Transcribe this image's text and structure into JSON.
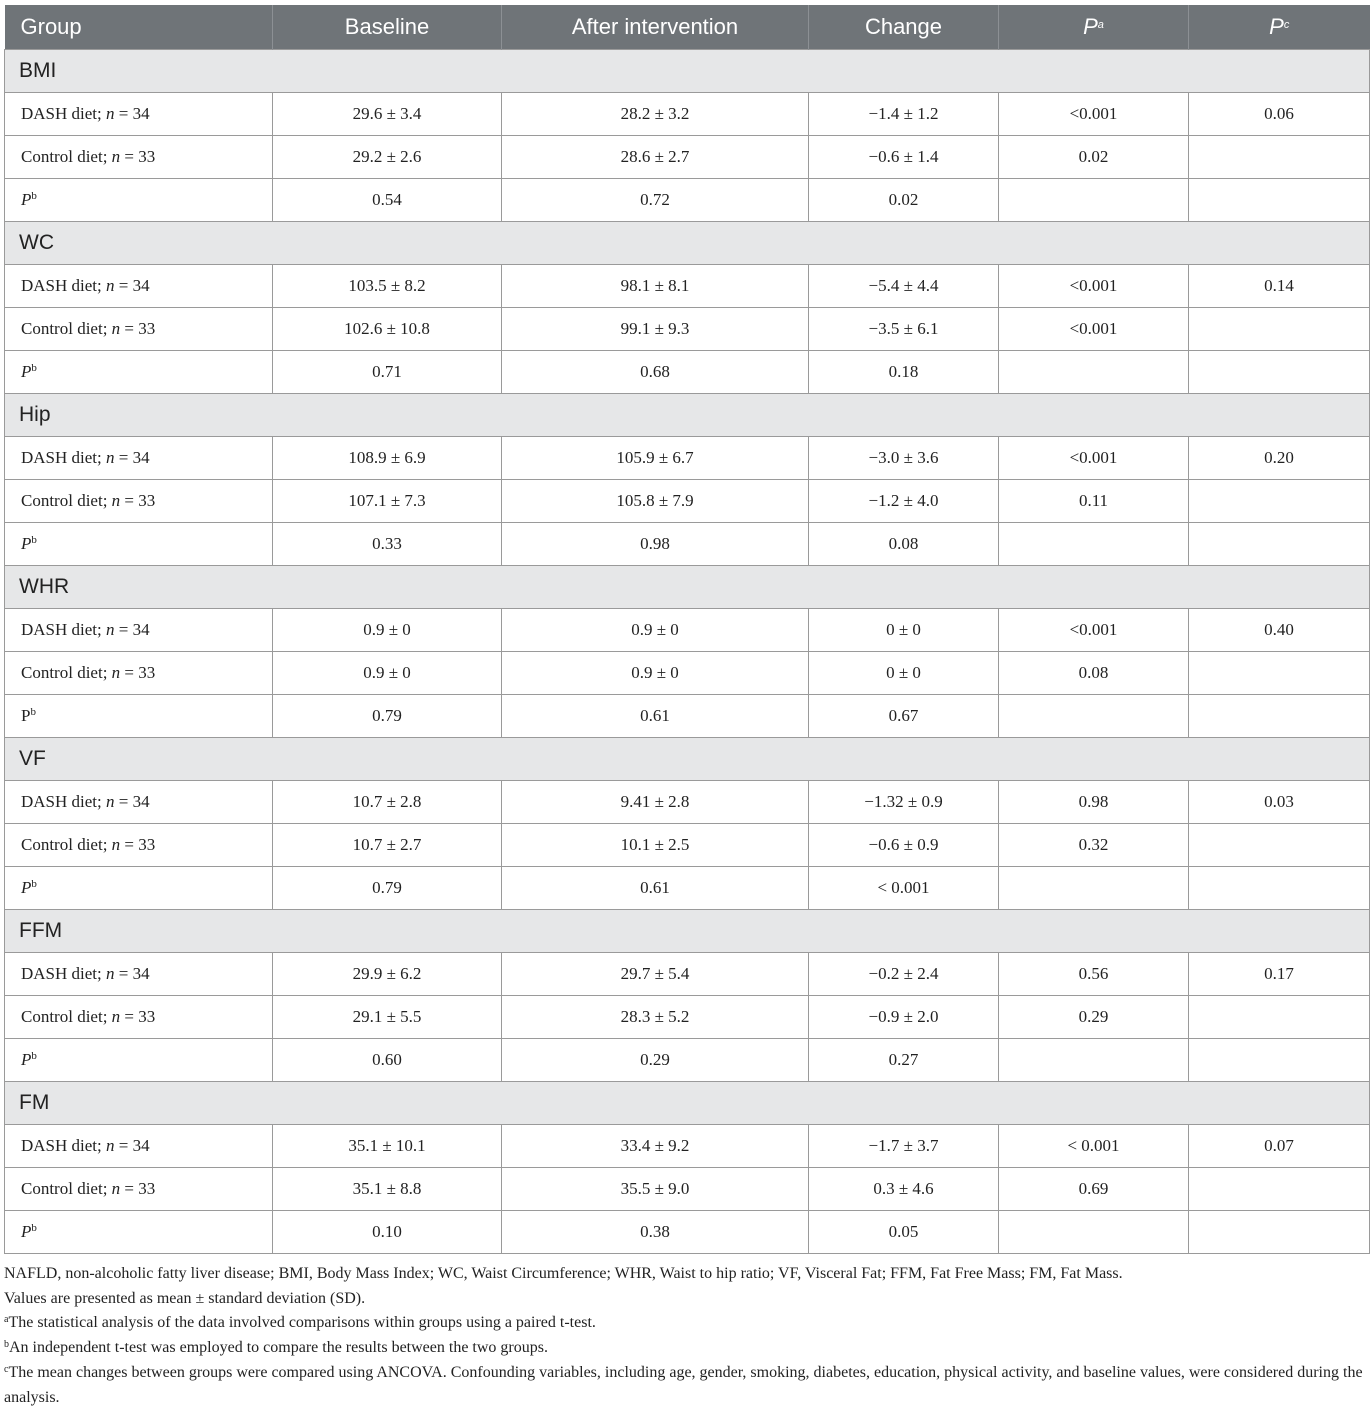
{
  "header": {
    "group": "Group",
    "baseline": "Baseline",
    "after": "After intervention",
    "change": "Change",
    "pa": "P",
    "pa_sup": "a",
    "pc": "P",
    "pc_sup": "c"
  },
  "sections": [
    {
      "name": "BMI",
      "rows": [
        {
          "group": "DASH diet; ",
          "n_var": "n",
          "n_val": " = 34",
          "baseline": "29.6 ± 3.4",
          "after": "28.2 ± 3.2",
          "change": "−1.4 ± 1.2",
          "pa": "<0.001",
          "pc": "0.06"
        },
        {
          "group": "Control diet; ",
          "n_var": "n",
          "n_val": " = 33",
          "baseline": "29.2 ± 2.6",
          "after": "28.6 ± 2.7",
          "change": "−0.6 ± 1.4",
          "pa": "0.02",
          "pc": ""
        },
        {
          "group": "P",
          "sup": "b",
          "baseline": "0.54",
          "after": "0.72",
          "change": "0.02",
          "pa": "",
          "pc": ""
        }
      ]
    },
    {
      "name": "WC",
      "rows": [
        {
          "group": "DASH diet; ",
          "n_var": "n",
          "n_val": " = 34",
          "baseline": "103.5 ± 8.2",
          "after": "98.1 ± 8.1",
          "change": "−5.4 ± 4.4",
          "pa": "<0.001",
          "pc": "0.14"
        },
        {
          "group": "Control diet; ",
          "n_var": "n",
          "n_val": " = 33",
          "baseline": "102.6 ± 10.8",
          "after": "99.1 ± 9.3",
          "change": "−3.5 ± 6.1",
          "pa": "<0.001",
          "pc": ""
        },
        {
          "group": "P",
          "sup": "b",
          "baseline": "0.71",
          "after": "0.68",
          "change": "0.18",
          "pa": "",
          "pc": ""
        }
      ]
    },
    {
      "name": "Hip",
      "rows": [
        {
          "group": "DASH diet; ",
          "n_var": "n",
          "n_val": " = 34",
          "baseline": "108.9 ± 6.9",
          "after": "105.9 ± 6.7",
          "change": "−3.0 ± 3.6",
          "pa": "<0.001",
          "pc": "0.20"
        },
        {
          "group": "Control diet; ",
          "n_var": "n",
          "n_val": " = 33",
          "baseline": "107.1 ± 7.3",
          "after": "105.8 ± 7.9",
          "change": "−1.2 ± 4.0",
          "pa": "0.11",
          "pc": ""
        },
        {
          "group": "P",
          "sup": "b",
          "baseline": "0.33",
          "after": "0.98",
          "change": "0.08",
          "pa": "",
          "pc": ""
        }
      ]
    },
    {
      "name": "WHR",
      "rows": [
        {
          "group": "DASH diet; ",
          "n_var": "n",
          "n_val": " = 34",
          "baseline": "0.9 ± 0",
          "after": "0.9 ± 0",
          "change": "0 ± 0",
          "pa": "<0.001",
          "pc": "0.40"
        },
        {
          "group": "Control diet; ",
          "n_var": "n",
          "n_val": " = 33",
          "baseline": "0.9 ± 0",
          "after": "0.9 ± 0",
          "change": "0 ± 0",
          "pa": "0.08",
          "pc": ""
        },
        {
          "group": "P",
          "sup": "b",
          "upright": true,
          "baseline": "0.79",
          "after": "0.61",
          "change": "0.67",
          "pa": "",
          "pc": ""
        }
      ]
    },
    {
      "name": "VF",
      "rows": [
        {
          "group": "DASH diet; ",
          "n_var": "n",
          "n_val": " = 34",
          "baseline": "10.7 ± 2.8",
          "after": "9.41 ± 2.8",
          "change": "−1.32 ± 0.9",
          "pa": "0.98",
          "pc": "0.03"
        },
        {
          "group": "Control diet; ",
          "n_var": "n",
          "n_val": " = 33",
          "baseline": "10.7 ± 2.7",
          "after": "10.1 ± 2.5",
          "change": "−0.6 ± 0.9",
          "pa": "0.32",
          "pc": ""
        },
        {
          "group": "P",
          "sup": "b",
          "baseline": "0.79",
          "after": "0.61",
          "change": "< 0.001",
          "pa": "",
          "pc": ""
        }
      ]
    },
    {
      "name": "FFM",
      "rows": [
        {
          "group": "DASH diet; ",
          "n_var": "n",
          "n_val": " = 34",
          "baseline": "29.9 ± 6.2",
          "after": "29.7 ± 5.4",
          "change": "−0.2 ± 2.4",
          "pa": "0.56",
          "pc": "0.17"
        },
        {
          "group": "Control diet; ",
          "n_var": "n",
          "n_val": " = 33",
          "baseline": "29.1 ± 5.5",
          "after": "28.3 ± 5.2",
          "change": "−0.9 ± 2.0",
          "pa": "0.29",
          "pc": ""
        },
        {
          "group": "P",
          "sup": "b",
          "baseline": "0.60",
          "after": "0.29",
          "change": "0.27",
          "pa": "",
          "pc": ""
        }
      ]
    },
    {
      "name": "FM",
      "rows": [
        {
          "group": "DASH diet; ",
          "n_var": "n",
          "n_val": " = 34",
          "baseline": "35.1 ± 10.1",
          "after": "33.4 ± 9.2",
          "change": "−1.7 ± 3.7",
          "pa": "< 0.001",
          "pc": "0.07"
        },
        {
          "group": "Control diet; ",
          "n_var": "n",
          "n_val": " = 33",
          "baseline": "35.1 ± 8.8",
          "after": "35.5 ± 9.0",
          "change": "0.3 ± 4.6",
          "pa": "0.69",
          "pc": ""
        },
        {
          "group": "P",
          "sup": "b",
          "baseline": "0.10",
          "after": "0.38",
          "change": "0.05",
          "pa": "",
          "pc": ""
        }
      ]
    }
  ],
  "footnotes": {
    "abbrev": "NAFLD, non-alcoholic fatty liver disease; BMI, Body Mass Index; WC, Waist Circumference; WHR, Waist to hip ratio; VF, Visceral Fat; FFM, Fat Free Mass; FM, Fat Mass.",
    "values": "Values are presented as mean ± standard deviation (SD).",
    "a_mark": "a",
    "a": "The statistical analysis of the data involved comparisons within groups using a paired t-test.",
    "b_mark": "b",
    "b": "An independent t-test was employed to compare the results between the two groups.",
    "c_mark": "c",
    "c": "The mean changes between groups were compared using ANCOVA. Confounding variables, including age, gender, smoking, diabetes, education, physical activity, and baseline values, were considered during the analysis."
  }
}
